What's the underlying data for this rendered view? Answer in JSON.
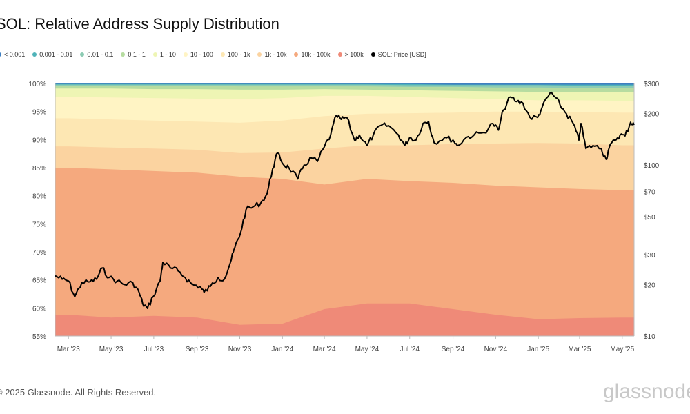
{
  "chart_data": {
    "type": "area",
    "title": "SOL: Relative Address Supply Distribution",
    "y_left": {
      "min": 0.55,
      "max": 1.0,
      "ticks": [
        "55%",
        "60%",
        "65%",
        "70%",
        "75%",
        "80%",
        "85%",
        "90%",
        "95%",
        "100%"
      ]
    },
    "y_right": {
      "scale": "log",
      "ticks": [
        {
          "label": "$10",
          "value": 10
        },
        {
          "label": "$20",
          "value": 20
        },
        {
          "label": "$30",
          "value": 30
        },
        {
          "label": "$50",
          "value": 50
        },
        {
          "label": "$70",
          "value": 70
        },
        {
          "label": "$100",
          "value": 100
        },
        {
          "label": "$200",
          "value": 200
        },
        {
          "label": "$300",
          "value": 300
        }
      ]
    },
    "x_ticks": [
      "Mar '23",
      "May '23",
      "Jul '23",
      "Sep '23",
      "Nov '23",
      "Jan '24",
      "Mar '24",
      "May '24",
      "Jul '24",
      "Sep '24",
      "Nov '24",
      "Jan '25",
      "Mar '25",
      "May '25"
    ],
    "x_dates": [
      "2023-03-01",
      "2023-05-01",
      "2023-07-01",
      "2023-09-01",
      "2023-11-01",
      "2024-01-01",
      "2024-03-01",
      "2024-05-01",
      "2024-07-01",
      "2024-09-01",
      "2024-11-01",
      "2025-01-01",
      "2025-03-01",
      "2025-05-01"
    ],
    "series": [
      {
        "name": "> 100k",
        "color": "#ef8a78",
        "values": [
          0.588,
          0.583,
          0.586,
          0.583,
          0.57,
          0.572,
          0.598,
          0.608,
          0.608,
          0.598,
          0.588,
          0.58,
          0.582,
          0.583
        ]
      },
      {
        "name": "10k - 100k",
        "color": "#f5a97e",
        "values": [
          0.85,
          0.847,
          0.844,
          0.841,
          0.834,
          0.83,
          0.82,
          0.83,
          0.826,
          0.823,
          0.818,
          0.815,
          0.812,
          0.81
        ]
      },
      {
        "name": "1k - 10k",
        "color": "#fbd3a0",
        "values": [
          0.888,
          0.886,
          0.884,
          0.882,
          0.876,
          0.877,
          0.884,
          0.89,
          0.89,
          0.892,
          0.893,
          0.894,
          0.893,
          0.89
        ]
      },
      {
        "name": "100 - 1k",
        "color": "#fde7b3",
        "values": [
          0.938,
          0.936,
          0.934,
          0.932,
          0.93,
          0.934,
          0.942,
          0.946,
          0.947,
          0.948,
          0.95,
          0.95,
          0.949,
          0.948
        ]
      },
      {
        "name": "10 - 100",
        "color": "#fff4c4",
        "values": [
          0.976,
          0.975,
          0.974,
          0.973,
          0.972,
          0.974,
          0.978,
          0.978,
          0.976,
          0.974,
          0.972,
          0.97,
          0.97,
          0.969
        ]
      },
      {
        "name": "1 - 10",
        "color": "#eef5b4",
        "values": [
          0.991,
          0.991,
          0.99,
          0.99,
          0.989,
          0.989,
          0.99,
          0.989,
          0.988,
          0.987,
          0.986,
          0.985,
          0.985,
          0.985
        ]
      },
      {
        "name": "0.1 - 1",
        "color": "#b6dca0",
        "values": [
          0.996,
          0.996,
          0.996,
          0.996,
          0.995,
          0.995,
          0.995,
          0.995,
          0.994,
          0.994,
          0.993,
          0.993,
          0.992,
          0.992
        ]
      },
      {
        "name": "0.01 - 0.1",
        "color": "#8ccbb3",
        "values": [
          0.998,
          0.998,
          0.998,
          0.998,
          0.998,
          0.998,
          0.998,
          0.998,
          0.997,
          0.997,
          0.997,
          0.997,
          0.996,
          0.996
        ]
      },
      {
        "name": "0.001 - 0.01",
        "color": "#4fb3b9",
        "values": [
          0.999,
          0.999,
          0.999,
          0.999,
          0.999,
          0.999,
          0.999,
          0.999,
          0.999,
          0.998,
          0.998,
          0.998,
          0.998,
          0.998
        ]
      },
      {
        "name": "< 0.001",
        "color": "#3f7fc1",
        "values": [
          1.0,
          1.0,
          1.0,
          1.0,
          1.0,
          1.0,
          1.0,
          1.0,
          1.0,
          1.0,
          1.0,
          1.0,
          1.0,
          1.0
        ]
      }
    ],
    "price": {
      "name": "SOL: Price [USD]",
      "color": "#000000",
      "points": [
        [
          "2023-02-10",
          22.5
        ],
        [
          "2023-02-20",
          21.5
        ],
        [
          "2023-03-01",
          21
        ],
        [
          "2023-03-10",
          17
        ],
        [
          "2023-03-20",
          20.5
        ],
        [
          "2023-04-01",
          20.8
        ],
        [
          "2023-04-10",
          21.5
        ],
        [
          "2023-04-18",
          25
        ],
        [
          "2023-04-28",
          22
        ],
        [
          "2023-05-10",
          21
        ],
        [
          "2023-05-20",
          20
        ],
        [
          "2023-06-01",
          20.5
        ],
        [
          "2023-06-10",
          18
        ],
        [
          "2023-06-15",
          15.5
        ],
        [
          "2023-06-22",
          14.5
        ],
        [
          "2023-06-30",
          17
        ],
        [
          "2023-07-10",
          21
        ],
        [
          "2023-07-14",
          27
        ],
        [
          "2023-07-25",
          25
        ],
        [
          "2023-08-05",
          24
        ],
        [
          "2023-08-15",
          22
        ],
        [
          "2023-08-25",
          20
        ],
        [
          "2023-09-05",
          19.5
        ],
        [
          "2023-09-11",
          18
        ],
        [
          "2023-09-20",
          19.5
        ],
        [
          "2023-10-01",
          22
        ],
        [
          "2023-10-10",
          21.5
        ],
        [
          "2023-10-20",
          28
        ],
        [
          "2023-10-25",
          33
        ],
        [
          "2023-11-02",
          40
        ],
        [
          "2023-11-10",
          55
        ],
        [
          "2023-11-20",
          57
        ],
        [
          "2023-12-01",
          60
        ],
        [
          "2023-12-10",
          68
        ],
        [
          "2023-12-18",
          95
        ],
        [
          "2023-12-25",
          118
        ],
        [
          "2024-01-03",
          100
        ],
        [
          "2024-01-10",
          97
        ],
        [
          "2024-01-23",
          83
        ],
        [
          "2024-02-01",
          100
        ],
        [
          "2024-02-12",
          110
        ],
        [
          "2024-02-20",
          105
        ],
        [
          "2024-03-01",
          128
        ],
        [
          "2024-03-10",
          150
        ],
        [
          "2024-03-18",
          195
        ],
        [
          "2024-03-25",
          185
        ],
        [
          "2024-04-02",
          190
        ],
        [
          "2024-04-13",
          140
        ],
        [
          "2024-04-20",
          150
        ],
        [
          "2024-05-01",
          130
        ],
        [
          "2024-05-10",
          150
        ],
        [
          "2024-05-20",
          170
        ],
        [
          "2024-06-01",
          170
        ],
        [
          "2024-06-15",
          150
        ],
        [
          "2024-06-24",
          130
        ],
        [
          "2024-07-01",
          145
        ],
        [
          "2024-07-10",
          140
        ],
        [
          "2024-07-20",
          175
        ],
        [
          "2024-07-28",
          180
        ],
        [
          "2024-08-05",
          135
        ],
        [
          "2024-08-20",
          145
        ],
        [
          "2024-09-01",
          140
        ],
        [
          "2024-09-07",
          130
        ],
        [
          "2024-09-20",
          145
        ],
        [
          "2024-10-01",
          150
        ],
        [
          "2024-10-15",
          155
        ],
        [
          "2024-10-28",
          175
        ],
        [
          "2024-11-05",
          160
        ],
        [
          "2024-11-12",
          210
        ],
        [
          "2024-11-22",
          250
        ],
        [
          "2024-12-01",
          235
        ],
        [
          "2024-12-10",
          230
        ],
        [
          "2024-12-20",
          190
        ],
        [
          "2024-12-31",
          190
        ],
        [
          "2025-01-06",
          215
        ],
        [
          "2025-01-18",
          265
        ],
        [
          "2025-01-25",
          250
        ],
        [
          "2025-02-01",
          225
        ],
        [
          "2025-02-10",
          200
        ],
        [
          "2025-02-20",
          175
        ],
        [
          "2025-02-28",
          140
        ],
        [
          "2025-03-03",
          175
        ],
        [
          "2025-03-10",
          125
        ],
        [
          "2025-03-20",
          130
        ],
        [
          "2025-04-01",
          125
        ],
        [
          "2025-04-08",
          108
        ],
        [
          "2025-04-12",
          125
        ],
        [
          "2025-04-20",
          140
        ],
        [
          "2025-04-28",
          150
        ],
        [
          "2025-05-05",
          148
        ],
        [
          "2025-05-13",
          178
        ],
        [
          "2025-05-18",
          172
        ]
      ]
    },
    "legend_labels": [
      "< 0.001",
      "0.001 - 0.01",
      "0.01 - 0.1",
      "0.1 - 1",
      "1 - 10",
      "10 - 100",
      "100 - 1k",
      "1k - 10k",
      "10k - 100k",
      "> 100k",
      "SOL: Price [USD]"
    ],
    "legend_colors": [
      "#3f7fc1",
      "#4fb3b9",
      "#8ccbb3",
      "#b6dca0",
      "#eef5b4",
      "#fff4c4",
      "#fde7b3",
      "#fbd3a0",
      "#f5a97e",
      "#ef8a78",
      "#000000"
    ]
  },
  "footer": {
    "copyright": "© 2025 Glassnode. All Rights Reserved."
  },
  "watermark": {
    "text": "glassnode",
    "logo": "glassnode"
  }
}
